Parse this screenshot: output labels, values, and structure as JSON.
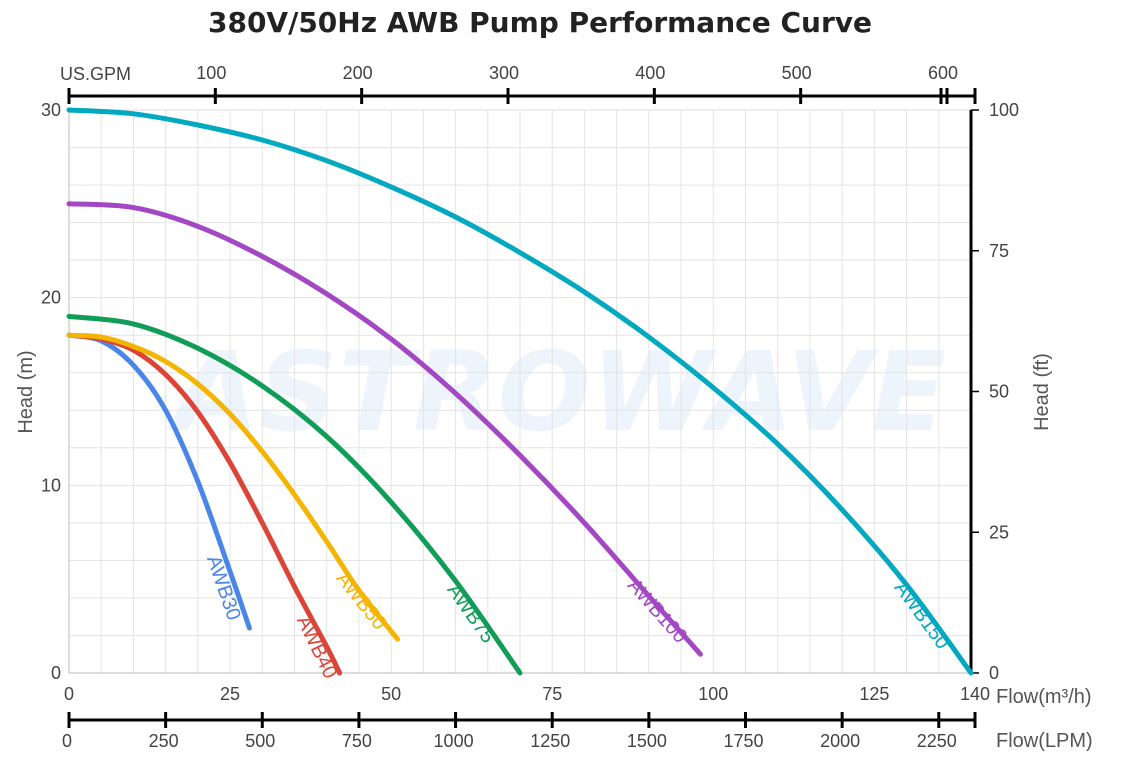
{
  "chart_data": {
    "type": "line",
    "title": "380V/50Hz AWB Pump Performance Curve",
    "xlabel": "Flow(m³/h)",
    "ylabel": "Head (m)",
    "y2label": "Head (ft)",
    "top_axis_label": "US.GPM",
    "bottom2_axis_label": "Flow(LPM)",
    "xlim": [
      0,
      140
    ],
    "ylim": [
      0,
      30
    ],
    "y2lim": [
      0,
      100
    ],
    "x_ticks": [
      "0",
      "25",
      "50",
      "75",
      "100",
      "125",
      "140"
    ],
    "x_tick_values": [
      0,
      25,
      50,
      75,
      100,
      125,
      140
    ],
    "y_ticks": [
      "0",
      "10",
      "20",
      "30"
    ],
    "y_tick_values": [
      0,
      10,
      20,
      30
    ],
    "y2_ticks": [
      "0",
      "25",
      "50",
      "75",
      "100"
    ],
    "y2_tick_values": [
      0,
      25,
      50,
      75,
      100
    ],
    "gpm_ticks": [
      "100",
      "200",
      "300",
      "400",
      "500",
      "600"
    ],
    "gpm_tick_values": [
      100,
      200,
      300,
      400,
      500,
      600
    ],
    "lpm_ticks": [
      "0",
      "250",
      "500",
      "750",
      "1000",
      "1250",
      "1500",
      "1750",
      "2000",
      "2250"
    ],
    "lpm_tick_values": [
      0,
      250,
      500,
      750,
      1000,
      1250,
      1500,
      1750,
      2000,
      2250
    ],
    "grid": true,
    "watermark": "ASTROWAVE",
    "series": [
      {
        "name": "AWB30",
        "color": "#4a86e8",
        "x": [
          0,
          5,
          10,
          15,
          20,
          25,
          28
        ],
        "y": [
          18,
          17.7,
          16.4,
          14.0,
          10.2,
          5.4,
          2.4
        ]
      },
      {
        "name": "AWB40",
        "color": "#db4437",
        "x": [
          0,
          5,
          10,
          15,
          20,
          25,
          30,
          35,
          40,
          42
        ],
        "y": [
          18,
          17.8,
          17.2,
          15.9,
          13.9,
          11.2,
          8.0,
          4.6,
          1.4,
          0
        ]
      },
      {
        "name": "AWB50",
        "color": "#f4b400",
        "x": [
          0,
          5,
          10,
          15,
          20,
          25,
          30,
          35,
          40,
          45,
          51
        ],
        "y": [
          18,
          17.9,
          17.4,
          16.6,
          15.4,
          13.8,
          11.8,
          9.5,
          7.0,
          4.4,
          1.8
        ]
      },
      {
        "name": "AWB75",
        "color": "#0f9d58",
        "x": [
          0,
          10,
          20,
          30,
          40,
          50,
          60,
          70
        ],
        "y": [
          19,
          18.6,
          17.3,
          15.3,
          12.6,
          9.1,
          4.9,
          0
        ]
      },
      {
        "name": "AWB100",
        "color": "#a347c4",
        "x": [
          0,
          10,
          20,
          30,
          40,
          50,
          60,
          70,
          80,
          90,
          98
        ],
        "y": [
          25,
          24.8,
          23.8,
          22.2,
          20.2,
          17.8,
          14.9,
          11.6,
          8.0,
          4.1,
          1.0
        ]
      },
      {
        "name": "AWB150",
        "color": "#00a8c0",
        "x": [
          0,
          10,
          20,
          30,
          40,
          50,
          60,
          70,
          80,
          90,
          100,
          110,
          120,
          130,
          140
        ],
        "y": [
          30,
          29.8,
          29.2,
          28.4,
          27.3,
          25.9,
          24.3,
          22.4,
          20.3,
          17.9,
          15.2,
          12.2,
          8.7,
          4.7,
          0
        ]
      }
    ]
  }
}
